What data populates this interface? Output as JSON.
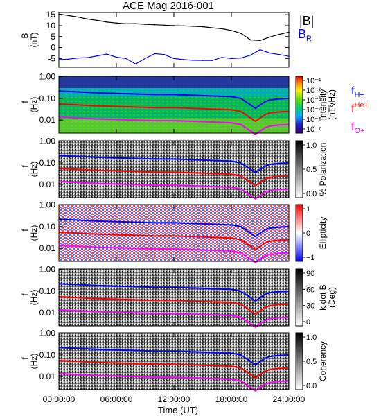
{
  "title": "ACE Mag 2016-001",
  "chart_data": [
    {
      "type": "line",
      "panel": "B",
      "ylabel": "B",
      "yunit": "(nT)",
      "ylim": [
        -9,
        16
      ],
      "yticks": [
        15,
        10,
        5,
        0,
        -5
      ],
      "legend": [
        {
          "name": "|B|",
          "color": "#000000"
        },
        {
          "name": "B",
          "sub": "R",
          "color": "#0000ff"
        }
      ],
      "x_hours": [
        0,
        1,
        2,
        3,
        4,
        5,
        6,
        7,
        8,
        9,
        10,
        11,
        12,
        13,
        14,
        15,
        16,
        17,
        18,
        19,
        20,
        21,
        22,
        23,
        24
      ],
      "series": [
        {
          "name": "|B|",
          "color": "#000000",
          "values": [
            15.3,
            14.6,
            13.9,
            13.0,
            12.4,
            11.6,
            11.2,
            10.8,
            10.9,
            10.6,
            10.4,
            10.2,
            10.0,
            9.9,
            9.7,
            9.5,
            9.0,
            8.6,
            7.8,
            6.5,
            3.5,
            3.2,
            4.8,
            6.0,
            7.0
          ]
        },
        {
          "name": "B_R",
          "color": "#0000ff",
          "values": [
            -5.5,
            -5.3,
            -4.8,
            -4.6,
            -3.8,
            -3.0,
            -4.4,
            -5.0,
            -7.5,
            -5.0,
            -2.8,
            -3.2,
            -5.0,
            -5.5,
            -5.8,
            -5.9,
            -5.9,
            -4.5,
            -5.0,
            -4.8,
            -3.5,
            -1.0,
            -2.5,
            -3.2,
            -4.0
          ]
        }
      ]
    },
    {
      "type": "heatmap",
      "panel": "Intensity",
      "ylabel": "f",
      "yunit": "(Hz)",
      "ylim": [
        0.002,
        1.0
      ],
      "yticks": [
        "1.00",
        "0.10",
        "0.01"
      ],
      "colorbar": {
        "label": "Intensity",
        "unit": "(nT²/Hz)",
        "scale": "rainbow",
        "ticks": [
          "10⁻¹",
          "10⁻²",
          "10⁻³",
          "10⁻⁴",
          "10⁻⁵",
          "10⁻⁶"
        ]
      },
      "overlays": [
        {
          "name": "f",
          "sub": "H+",
          "color": "#0000ff"
        },
        {
          "name": "f",
          "sub": "He+",
          "color": "#ff0000"
        },
        {
          "name": "f",
          "sub": "O+",
          "color": "#ff00ff"
        }
      ]
    },
    {
      "type": "heatmap",
      "panel": "Polarization",
      "ylabel": "f",
      "yunit": "(Hz)",
      "yticks": [
        "1.00",
        "0.10",
        "0.01"
      ],
      "colorbar": {
        "label": "% Polarization",
        "scale": "gray",
        "ticks": [
          "1.0",
          "0.5",
          "0.0"
        ]
      }
    },
    {
      "type": "heatmap",
      "panel": "Ellipticity",
      "ylabel": "f",
      "yunit": "(Hz)",
      "yticks": [
        "1.00",
        "0.10",
        "0.01"
      ],
      "colorbar": {
        "label": "Ellipticity",
        "scale": "bwr",
        "ticks": [
          "1",
          "0",
          "−1"
        ]
      }
    },
    {
      "type": "heatmap",
      "panel": "kdotB",
      "ylabel": "f",
      "yunit": "(Hz)",
      "yticks": [
        "1.00",
        "0.10",
        "0.01"
      ],
      "colorbar": {
        "label": "k dot B",
        "unit": "(Deg)",
        "scale": "gray",
        "ticks": [
          "90",
          "60",
          "30",
          "0"
        ]
      }
    },
    {
      "type": "heatmap",
      "panel": "Coherency",
      "ylabel": "f",
      "yunit": "(Hz)",
      "yticks": [
        "1.00",
        "0.10",
        "0.01"
      ],
      "colorbar": {
        "label": "Coherency",
        "scale": "gray",
        "ticks": [
          "1.0",
          "0.5",
          "0.0"
        ]
      }
    }
  ],
  "gyro_hours": [
    0,
    2,
    4,
    6,
    8,
    10,
    12,
    14,
    16,
    18,
    19,
    20,
    20.5,
    21,
    21.5,
    22,
    23,
    24
  ],
  "gyro_fH": [
    0.22,
    0.2,
    0.18,
    0.17,
    0.16,
    0.15,
    0.15,
    0.14,
    0.13,
    0.12,
    0.1,
    0.05,
    0.035,
    0.05,
    0.07,
    0.085,
    0.095,
    0.1
  ],
  "xaxis": {
    "xlabel": "Time (UT)",
    "ticks": [
      "00:00:00",
      "06:00:00",
      "12:00:00",
      "18:00:00",
      "24:00:00"
    ],
    "tick_hours": [
      0,
      6,
      12,
      18,
      24
    ]
  }
}
